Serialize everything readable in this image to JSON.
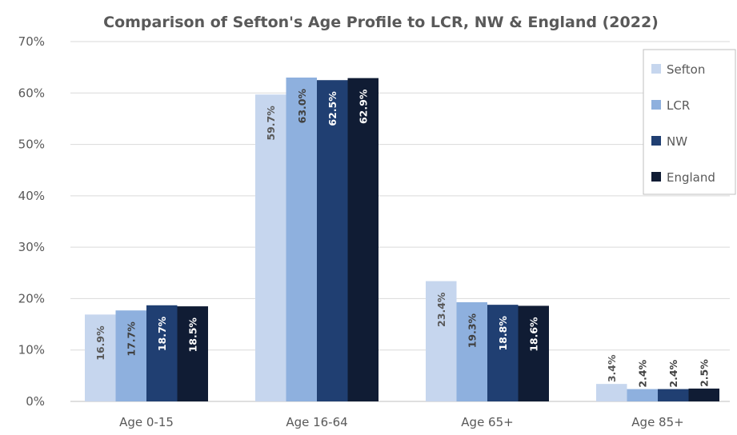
{
  "chart_data": {
    "type": "bar",
    "title": "Comparison of Sefton's Age Profile to LCR, NW & England (2022)",
    "categories": [
      "Age 0-15",
      "Age 16-64",
      "Age 65+",
      "Age 85+"
    ],
    "ylim": [
      0,
      70
    ],
    "yticks": [
      0,
      10,
      20,
      30,
      40,
      50,
      60,
      70
    ],
    "ytick_labels": [
      "0%",
      "10%",
      "20%",
      "30%",
      "40%",
      "50%",
      "60%",
      "70%"
    ],
    "grid": true,
    "legend_position": "top-right",
    "series": [
      {
        "name": "Sefton",
        "color": "#c6d6ee",
        "label_color": "#595959",
        "values": [
          16.9,
          59.7,
          23.4,
          3.4
        ],
        "labels": [
          "16.9%",
          "59.7%",
          "23.4%",
          "3.4%"
        ]
      },
      {
        "name": "LCR",
        "color": "#8eb0de",
        "label_color": "#404040",
        "values": [
          17.7,
          63.0,
          19.3,
          2.4
        ],
        "labels": [
          "17.7%",
          "63.0%",
          "19.3%",
          "2.4%"
        ]
      },
      {
        "name": "NW",
        "color": "#203f72",
        "label_color": "#ffffff",
        "values": [
          18.7,
          62.5,
          18.8,
          2.4
        ],
        "labels": [
          "18.7%",
          "62.5%",
          "18.8%",
          "2.4%"
        ]
      },
      {
        "name": "England",
        "color": "#101c34",
        "label_color": "#ffffff",
        "values": [
          18.5,
          62.9,
          18.6,
          2.5
        ],
        "labels": [
          "18.5%",
          "62.9%",
          "18.6%",
          "2.5%"
        ]
      }
    ]
  }
}
